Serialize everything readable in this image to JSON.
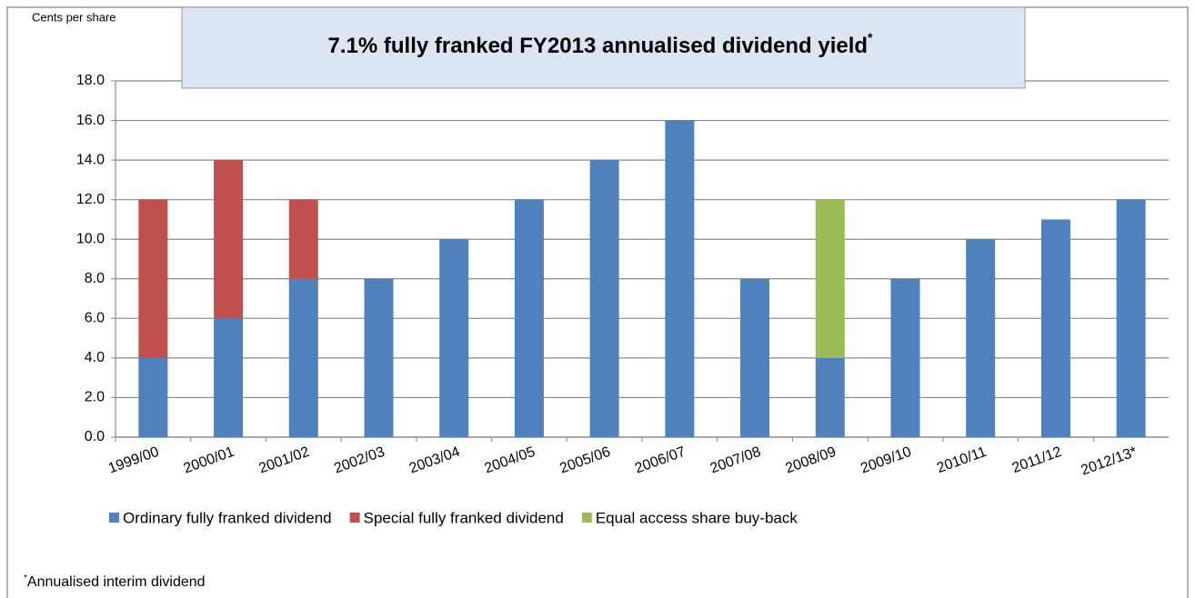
{
  "chart_data": {
    "type": "stacked_bar",
    "title": "7.1% fully franked FY2013 annualised dividend yield",
    "title_marker": "*",
    "y_axis_label": "Cents per share",
    "footnote_marker": "*",
    "footnote": "Annualised  interim dividend",
    "categories": [
      "1999/00",
      "2000/01",
      "2001/02",
      "2002/03",
      "2003/04",
      "2004/05",
      "2005/06",
      "2006/07",
      "2007/08",
      "2008/09",
      "2009/10",
      "2010/11",
      "2011/12",
      "2012/13*"
    ],
    "series": [
      {
        "name": "Ordinary fully franked dividend",
        "color": "#4f81bd",
        "values": [
          4,
          6,
          8,
          8,
          10,
          12,
          14,
          16,
          8,
          4,
          8,
          10,
          11,
          12
        ]
      },
      {
        "name": "Special fully franked dividend",
        "color": "#c0504d",
        "values": [
          8,
          8,
          4,
          0,
          0,
          0,
          0,
          0,
          0,
          0,
          0,
          0,
          0,
          0
        ]
      },
      {
        "name": "Equal access share buy-back",
        "color": "#9bbb59",
        "values": [
          0,
          0,
          0,
          0,
          0,
          0,
          0,
          0,
          0,
          8,
          0,
          0,
          0,
          0
        ]
      }
    ],
    "ylim": [
      0,
      18
    ],
    "yticks": [
      {
        "value": 0,
        "label": "0.0"
      },
      {
        "value": 2,
        "label": "2.0"
      },
      {
        "value": 4,
        "label": "4.0"
      },
      {
        "value": 6,
        "label": "6.0"
      },
      {
        "value": 8,
        "label": "8.0"
      },
      {
        "value": 10,
        "label": "10.0"
      },
      {
        "value": 12,
        "label": "12.0"
      },
      {
        "value": 14,
        "label": "14.0"
      },
      {
        "value": 16,
        "label": "16.0"
      },
      {
        "value": 18,
        "label": "18.0"
      }
    ],
    "grid": true,
    "legend": "bottom"
  }
}
